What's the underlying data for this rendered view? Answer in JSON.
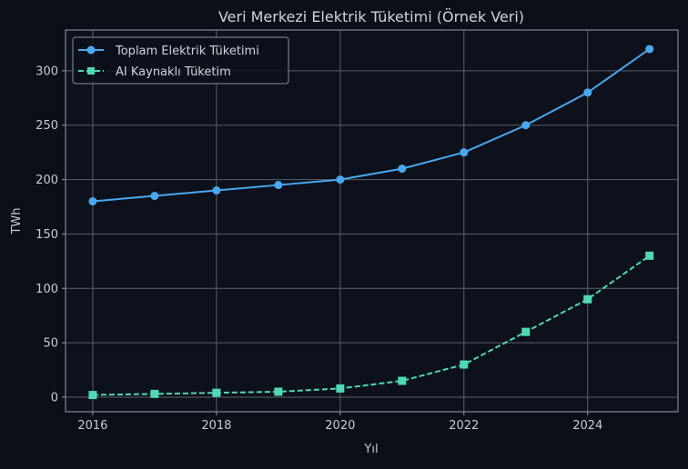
{
  "chart_data": {
    "type": "line",
    "title": "Veri Merkezi Elektrik Tüketimi (Örnek Veri)",
    "xlabel": "Yıl",
    "ylabel": "TWh",
    "x": [
      2016,
      2017,
      2018,
      2019,
      2020,
      2021,
      2022,
      2023,
      2024,
      2025
    ],
    "xlim": [
      2015.56,
      2025.46
    ],
    "ylim": [
      -13.4,
      337.5
    ],
    "xticks": [
      2016,
      2018,
      2020,
      2022,
      2024
    ],
    "yticks": [
      0,
      50,
      100,
      150,
      200,
      250,
      300
    ],
    "grid": true,
    "legend_position": "top-left",
    "series": [
      {
        "name": "Toplam Elektrik Tüketimi",
        "color": "#4aa8f0",
        "marker": "circle",
        "linestyle": "solid",
        "values": [
          180,
          185,
          190,
          195,
          200,
          210,
          225,
          250,
          280,
          320
        ]
      },
      {
        "name": "AI Kaynaklı Tüketim",
        "color": "#4fd8b4",
        "marker": "square",
        "linestyle": "dashed",
        "values": [
          2,
          3,
          4,
          5,
          8,
          15,
          30,
          60,
          90,
          130
        ]
      }
    ]
  }
}
